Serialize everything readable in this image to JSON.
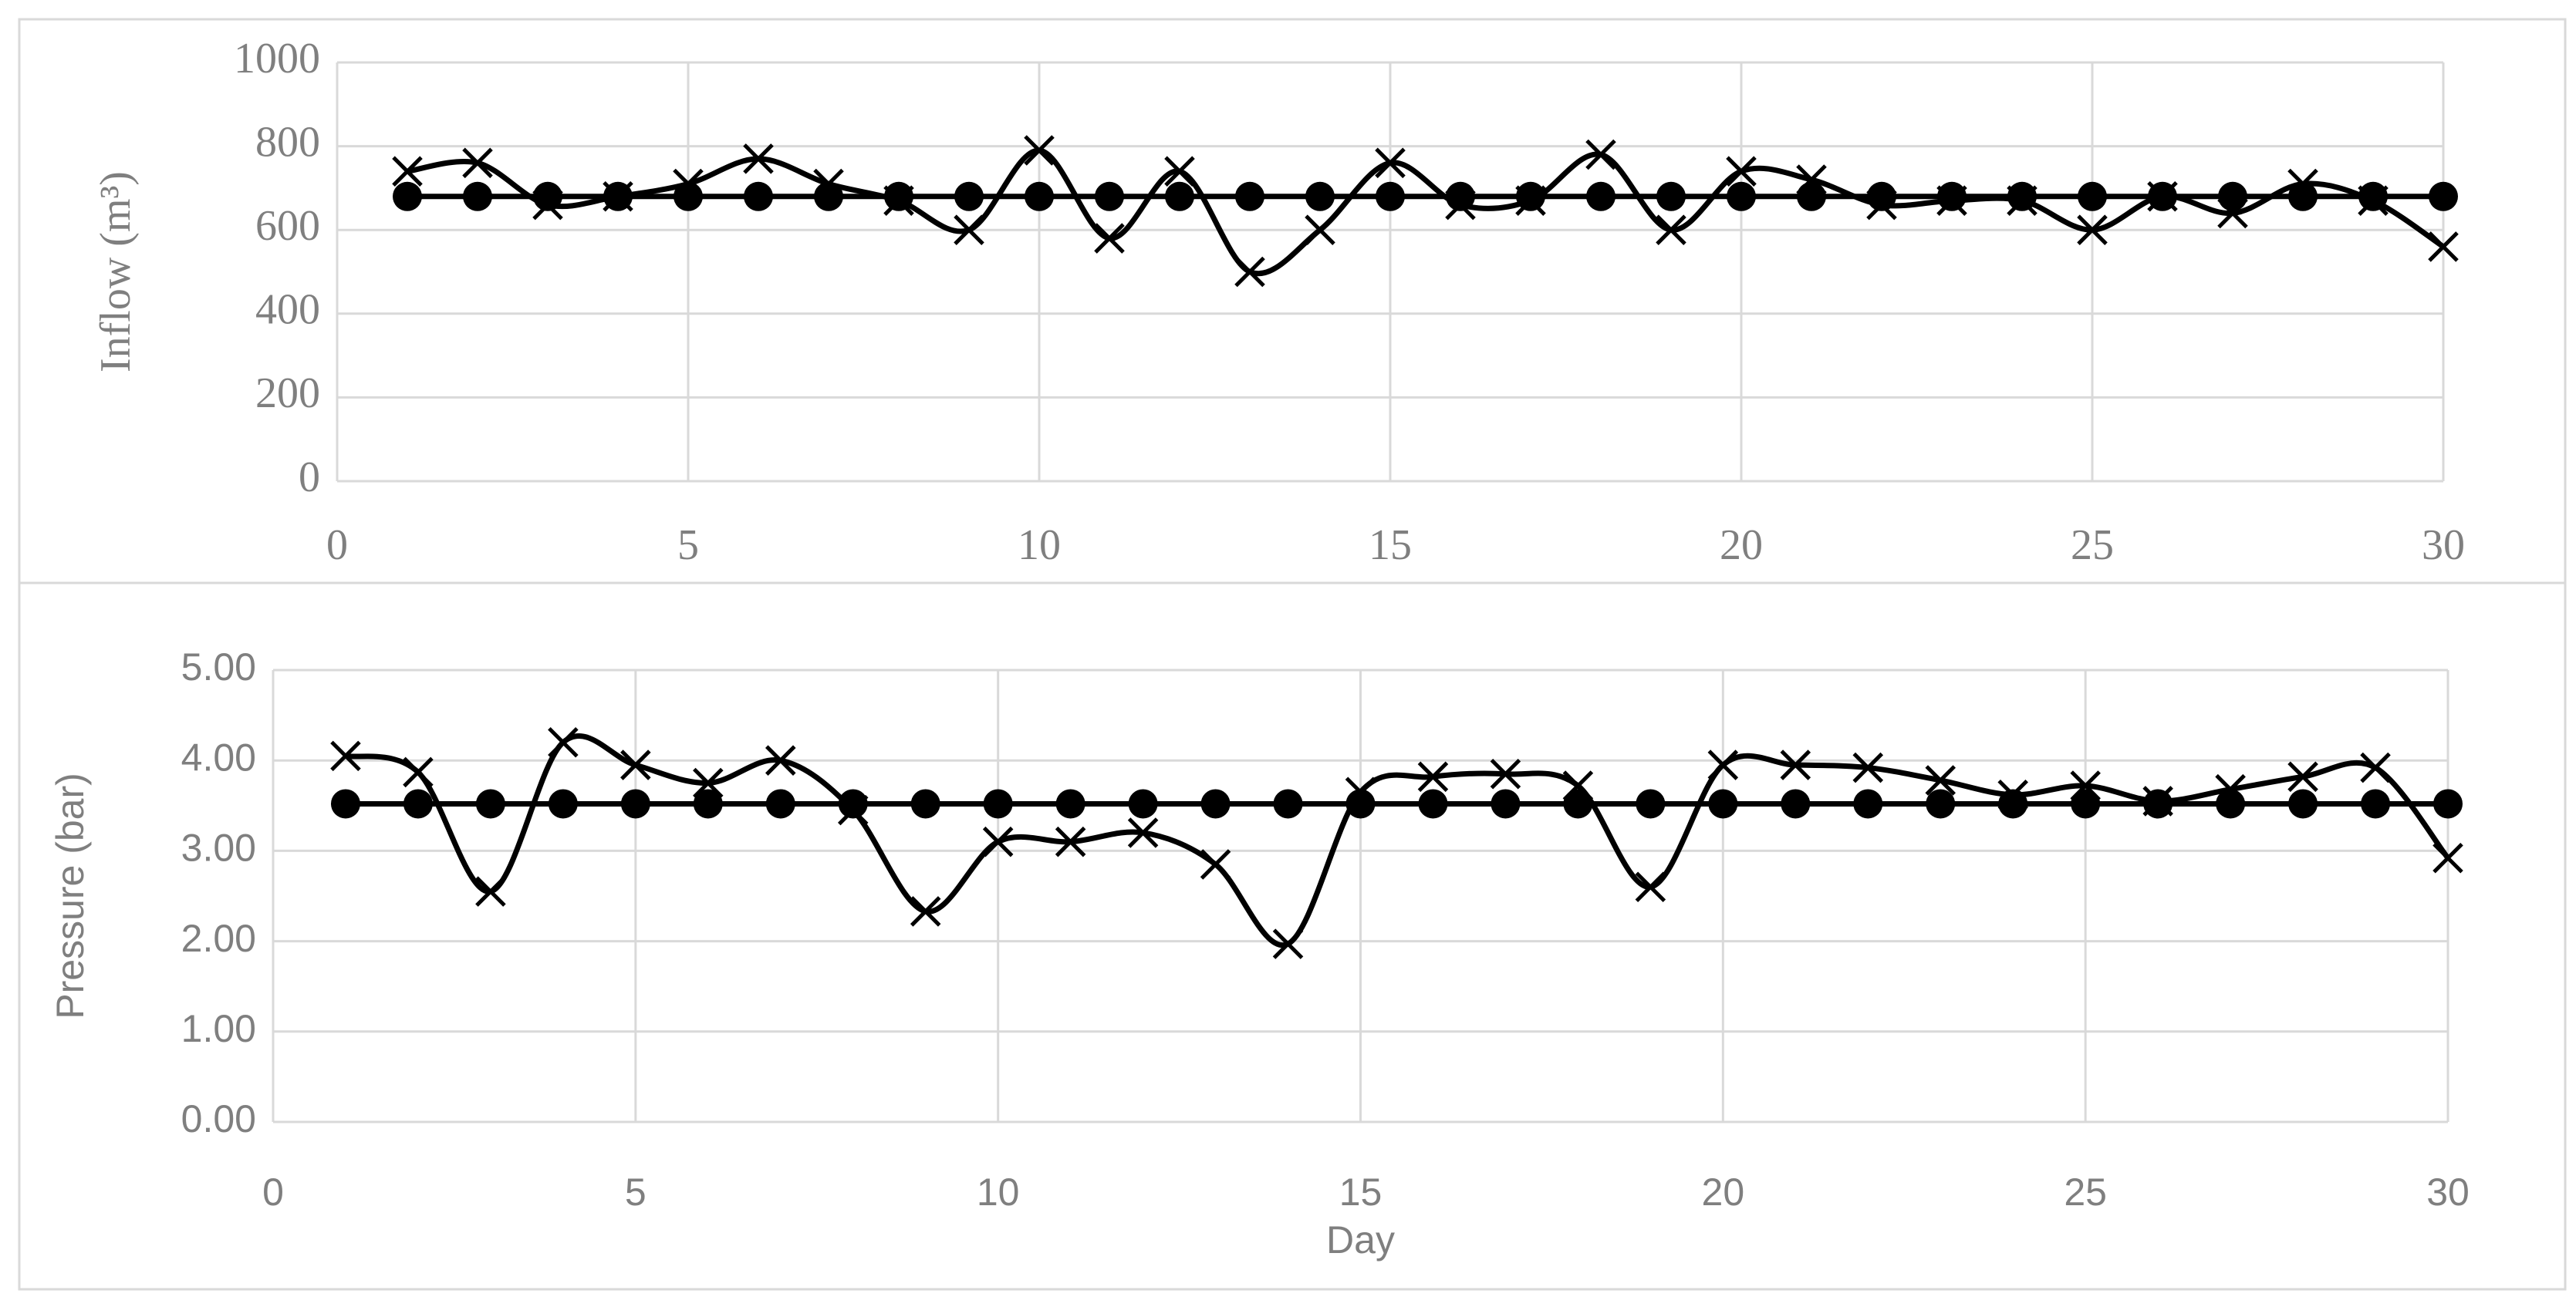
{
  "chart_data": [
    {
      "type": "line",
      "y_label": "Inflow (m³)",
      "x": [
        1,
        2,
        3,
        4,
        5,
        6,
        7,
        8,
        9,
        10,
        11,
        12,
        13,
        14,
        15,
        16,
        17,
        18,
        19,
        20,
        21,
        22,
        23,
        24,
        25,
        26,
        27,
        28,
        29,
        30
      ],
      "xlim": [
        0,
        30
      ],
      "xticks": [
        0,
        5,
        10,
        15,
        20,
        25,
        30
      ],
      "ylim": [
        0,
        1000
      ],
      "yticks": [
        0,
        200,
        400,
        600,
        800,
        1000
      ],
      "grid": true,
      "series": [
        {
          "color": "#000000",
          "marker": "x",
          "smooth": true,
          "values": [
            740,
            760,
            660,
            680,
            710,
            770,
            710,
            670,
            600,
            790,
            580,
            740,
            500,
            600,
            760,
            660,
            670,
            780,
            600,
            740,
            720,
            660,
            670,
            670,
            600,
            680,
            640,
            710,
            670,
            560
          ]
        },
        {
          "color": "#000000",
          "marker": "circle",
          "smooth": false,
          "values": [
            680,
            680,
            680,
            680,
            680,
            680,
            680,
            680,
            680,
            680,
            680,
            680,
            680,
            680,
            680,
            680,
            680,
            680,
            680,
            680,
            680,
            680,
            680,
            680,
            680,
            680,
            680,
            680,
            680,
            680
          ]
        }
      ]
    },
    {
      "type": "line",
      "x_label": "Day",
      "y_label": "Pressure (bar)",
      "x": [
        1,
        2,
        3,
        4,
        5,
        6,
        7,
        8,
        9,
        10,
        11,
        12,
        13,
        14,
        15,
        16,
        17,
        18,
        19,
        20,
        21,
        22,
        23,
        24,
        25,
        26,
        27,
        28,
        29,
        30
      ],
      "xlim": [
        0,
        30
      ],
      "xticks": [
        0,
        5,
        10,
        15,
        20,
        25,
        30
      ],
      "ylim": [
        0,
        5
      ],
      "yticks": [
        {
          "value": 0,
          "label": "0.00"
        },
        {
          "value": 1,
          "label": "1.00"
        },
        {
          "value": 2,
          "label": "2.00"
        },
        {
          "value": 3,
          "label": "3.00"
        },
        {
          "value": 4,
          "label": "4.00"
        },
        {
          "value": 5,
          "label": "5.00"
        }
      ],
      "grid": true,
      "series": [
        {
          "color": "#000000",
          "marker": "x",
          "smooth": true,
          "values": [
            4.05,
            3.87,
            2.55,
            4.2,
            3.95,
            3.75,
            4.0,
            3.45,
            2.33,
            3.1,
            3.1,
            3.2,
            2.85,
            1.97,
            3.65,
            3.82,
            3.85,
            3.72,
            2.6,
            3.95,
            3.95,
            3.92,
            3.78,
            3.62,
            3.72,
            3.55,
            3.68,
            3.82,
            3.92,
            2.92
          ]
        },
        {
          "color": "#000000",
          "marker": "circle",
          "smooth": false,
          "values": [
            3.52,
            3.52,
            3.52,
            3.52,
            3.52,
            3.52,
            3.52,
            3.52,
            3.52,
            3.52,
            3.52,
            3.52,
            3.52,
            3.52,
            3.52,
            3.52,
            3.52,
            3.52,
            3.52,
            3.52,
            3.52,
            3.52,
            3.52,
            3.52,
            3.52,
            3.52,
            3.52,
            3.52,
            3.52,
            3.52
          ]
        }
      ]
    }
  ]
}
